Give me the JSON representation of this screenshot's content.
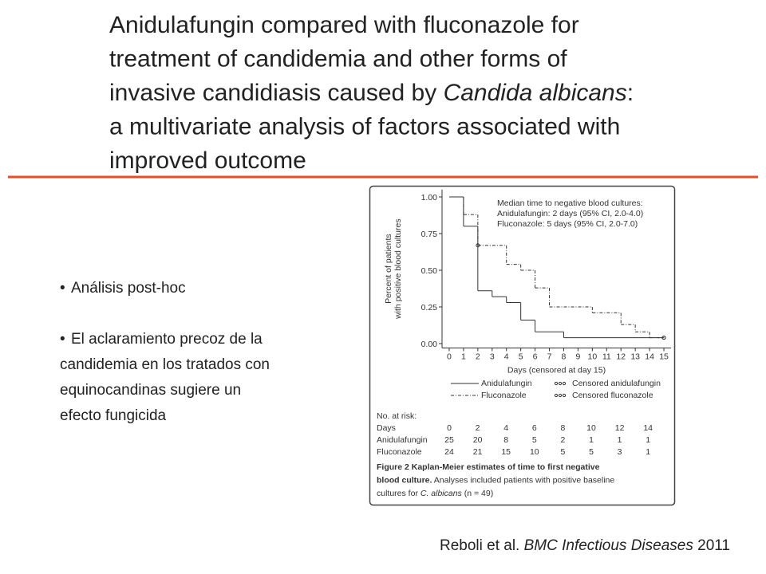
{
  "title": {
    "lines": [
      [
        {
          "text": "Anidulafungin compared with fluconazole for",
          "italic": false
        }
      ],
      [
        {
          "text": "treatment of candidemia and other forms of",
          "italic": false
        }
      ],
      [
        {
          "text": "invasive candidiasis caused by ",
          "italic": false
        },
        {
          "text": "Candida albicans",
          "italic": true
        },
        {
          "text": ":",
          "italic": false
        }
      ],
      [
        {
          "text": "a multivariate analysis of factors associated with",
          "italic": false
        }
      ],
      [
        {
          "text": "improved outcome",
          "italic": false
        }
      ]
    ]
  },
  "bullets": [
    {
      "lines": [
        "Análisis post-hoc"
      ]
    },
    {
      "lines": [
        "El aclaramiento precoz de la",
        "candidemia en los tratados con",
        "equinocandinas sugiere un",
        "efecto fungicida"
      ]
    }
  ],
  "citation": [
    {
      "text": "Reboli et al. ",
      "italic": false
    },
    {
      "text": "BMC Infectious Diseases",
      "italic": true
    },
    {
      "text": " 2011",
      "italic": false
    }
  ],
  "figure": {
    "chart_data": {
      "type": "step",
      "ylabel": [
        "Percent of patients",
        "with positive blood cultures"
      ],
      "xlabel": "Days (censored at day 15)",
      "annotation": [
        "Median time to negative blood cultures:",
        "Anidulafungin: 2 days (95% CI, 2.0-4.0)",
        "Fluconazole: 5 days (95% CI, 2.0-7.0)"
      ],
      "xlim": [
        -0.5,
        15.5
      ],
      "xticks": [
        0,
        1,
        2,
        3,
        4,
        5,
        6,
        7,
        8,
        9,
        10,
        11,
        12,
        13,
        14,
        15
      ],
      "ylim": [
        -0.03,
        1.05
      ],
      "yticks": [
        {
          "value": 0,
          "label": "0.00"
        },
        {
          "value": 0.25,
          "label": "0.25"
        },
        {
          "value": 0.5,
          "label": "0.50"
        },
        {
          "value": 0.75,
          "label": "0.75"
        },
        {
          "value": 1,
          "label": "1.00"
        }
      ],
      "series": [
        {
          "name": "Anidulafungin",
          "kind": "step",
          "dash": "none",
          "color": "#333333",
          "x": [
            0,
            1,
            2,
            3,
            4,
            5,
            6,
            8,
            15
          ],
          "values": [
            1.0,
            0.8,
            0.36,
            0.32,
            0.28,
            0.16,
            0.08,
            0.04,
            0.04
          ]
        },
        {
          "name": "Fluconazole",
          "kind": "step",
          "dash": "4 2 1 2",
          "color": "#333333",
          "x": [
            0,
            1,
            2,
            4,
            5,
            6,
            7,
            10,
            12,
            13,
            14,
            15
          ],
          "values": [
            1.0,
            0.88,
            0.67,
            0.54,
            0.5,
            0.38,
            0.25,
            0.21,
            0.13,
            0.08,
            0.04,
            0.04
          ]
        },
        {
          "name": "Censored anidulafungin",
          "kind": "censor",
          "color": "#333333",
          "x": [
            15
          ],
          "values": [
            0.04
          ]
        },
        {
          "name": "Censored fluconazole",
          "kind": "censor",
          "color": "#333333",
          "x": [
            2,
            15
          ],
          "values": [
            0.67,
            0.04
          ]
        }
      ]
    },
    "risk_table": {
      "title": "No. at risk:",
      "header": "Days",
      "days": [
        0,
        2,
        4,
        6,
        8,
        10,
        12,
        14
      ],
      "rows": [
        {
          "label": "Anidulafungin",
          "values": [
            25,
            20,
            8,
            5,
            2,
            1,
            1,
            1
          ]
        },
        {
          "label": "Fluconazole",
          "values": [
            24,
            21,
            15,
            10,
            5,
            5,
            3,
            1
          ]
        }
      ]
    },
    "caption": [
      [
        {
          "text": "Figure 2 Kaplan-Meier estimates of time to first negative",
          "bold": true,
          "italic": false
        }
      ],
      [
        {
          "text": "blood culture.",
          "bold": true,
          "italic": false
        },
        {
          "text": " Analyses included patients with positive baseline",
          "bold": false,
          "italic": false
        }
      ],
      [
        {
          "text": "cultures for ",
          "bold": false,
          "italic": false
        },
        {
          "text": "C. albicans",
          "bold": false,
          "italic": true
        },
        {
          "text": " (n = 49)",
          "bold": false,
          "italic": false
        }
      ]
    ]
  }
}
